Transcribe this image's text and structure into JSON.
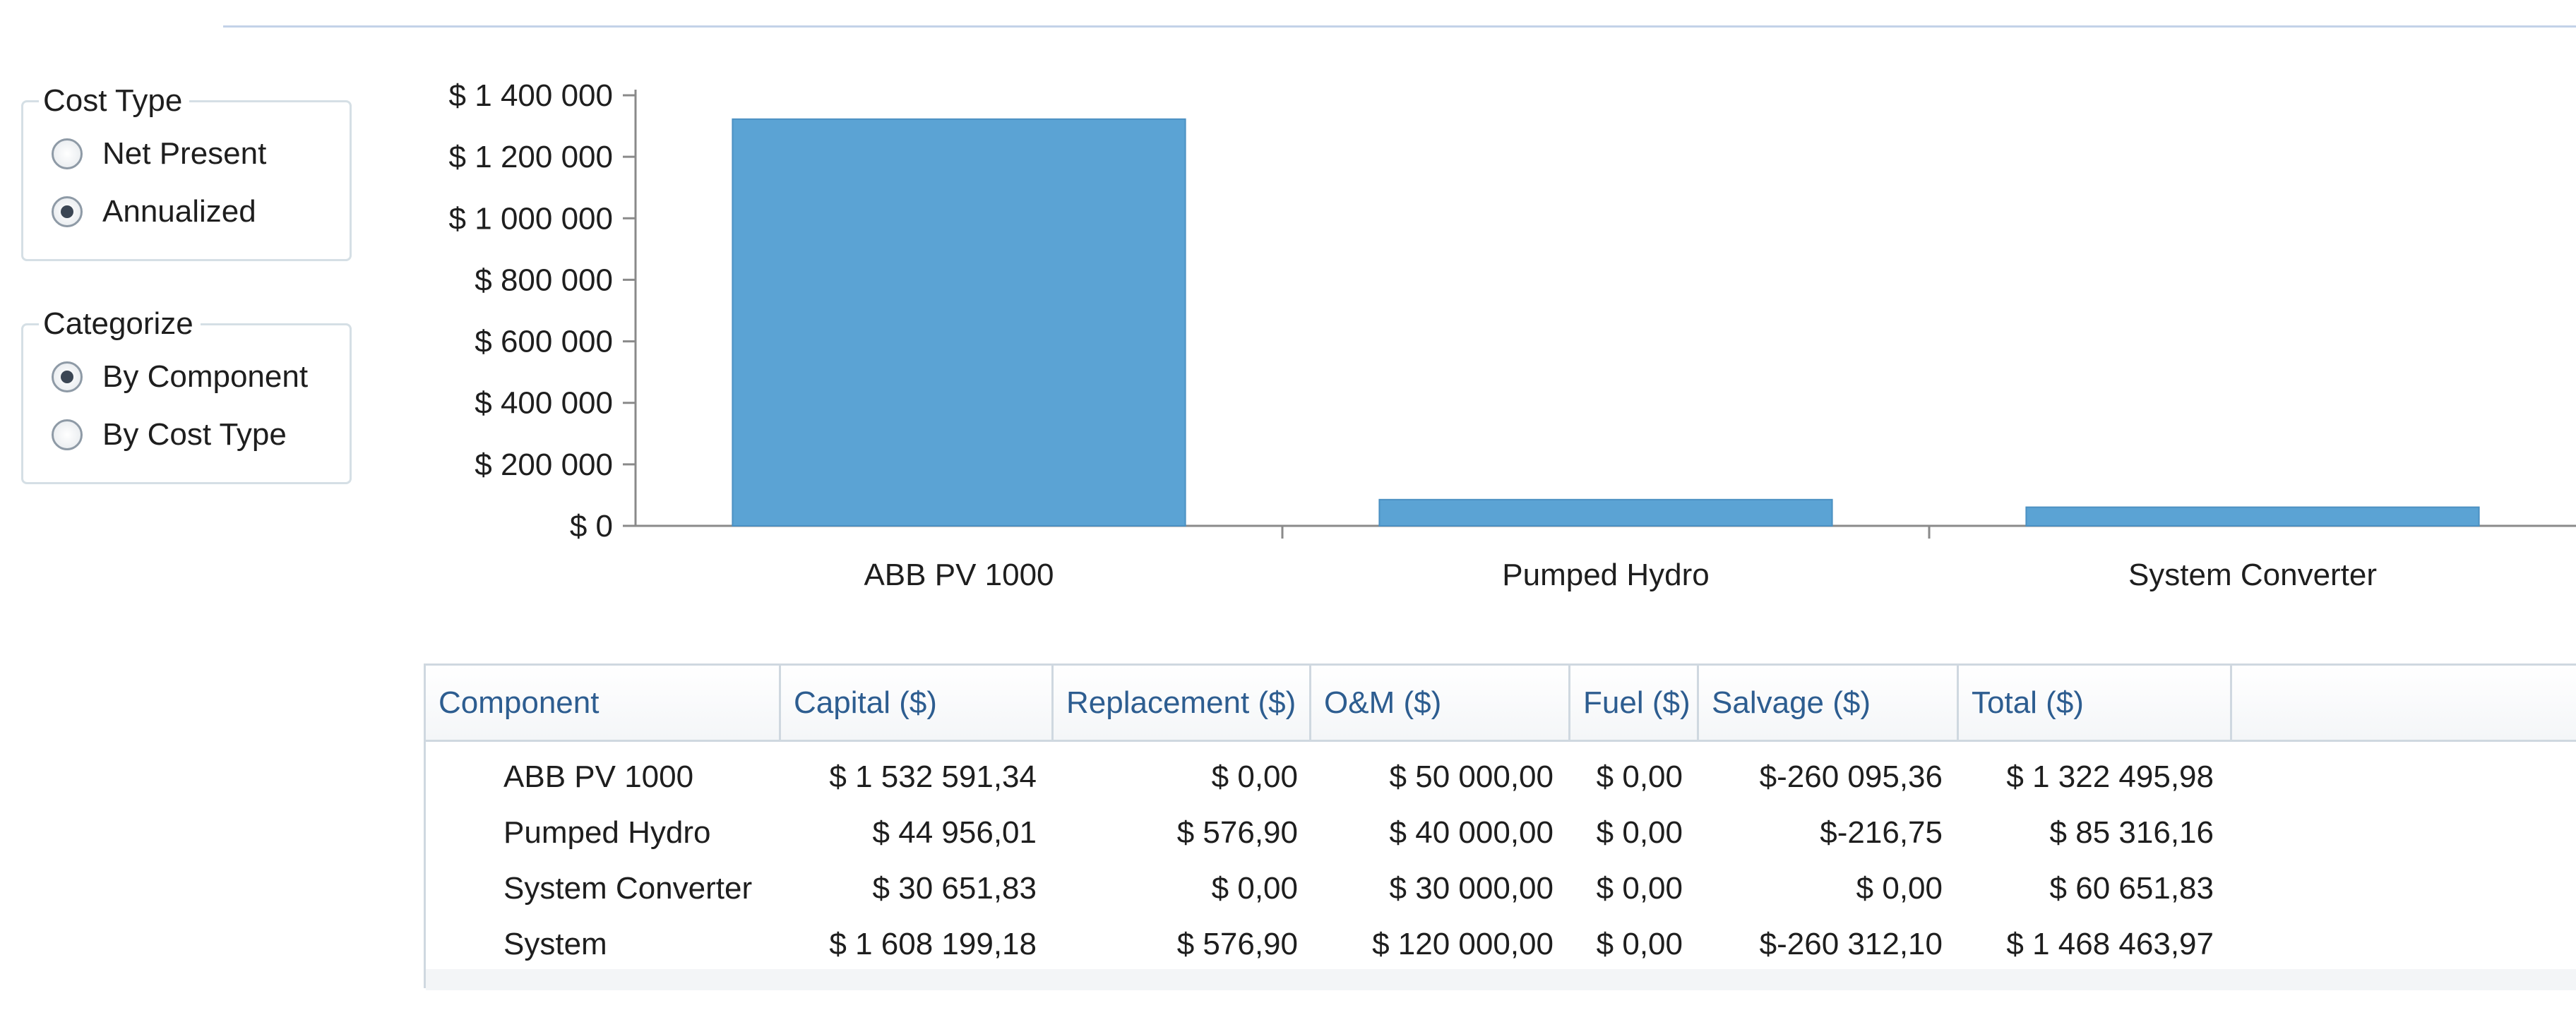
{
  "cost_type": {
    "title": "Cost Type",
    "options": [
      {
        "label": "Net Present",
        "selected": false
      },
      {
        "label": "Annualized",
        "selected": true
      }
    ]
  },
  "categorize": {
    "title": "Categorize",
    "options": [
      {
        "label": "By Component",
        "selected": true
      },
      {
        "label": "By Cost Type",
        "selected": false
      }
    ]
  },
  "colors": {
    "bar": "#5ba3d4",
    "axis": "#8a8a8a",
    "header_text": "#2d5d90",
    "grid_line": "#cfd8e0"
  },
  "chart_data": {
    "type": "bar",
    "categories": [
      "ABB PV 1000",
      "Pumped Hydro",
      "System Converter"
    ],
    "values": [
      1322495.98,
      85316.16,
      60651.83
    ],
    "ylim": [
      0,
      1400000
    ],
    "yticks": [
      0,
      200000,
      400000,
      600000,
      800000,
      1000000,
      1200000,
      1400000
    ],
    "ytick_labels": [
      "$ 0",
      "$ 200 000",
      "$ 400 000",
      "$ 600 000",
      "$ 800 000",
      "$ 1 000 000",
      "$ 1 200 000",
      "$ 1 400 000"
    ],
    "grid": false,
    "legend": "none"
  },
  "table": {
    "columns": [
      "Component",
      "Capital ($)",
      "Replacement ($)",
      "O&M ($)",
      "Fuel ($)",
      "Salvage ($)",
      "Total ($)"
    ],
    "rows": [
      [
        "ABB PV 1000",
        "$ 1 532 591,34",
        "$ 0,00",
        "$ 50 000,00",
        "$ 0,00",
        "$-260 095,36",
        "$ 1 322 495,98"
      ],
      [
        "Pumped Hydro",
        "$ 44 956,01",
        "$ 576,90",
        "$ 40 000,00",
        "$ 0,00",
        "$-216,75",
        "$ 85 316,16"
      ],
      [
        "System Converter",
        "$ 30 651,83",
        "$ 0,00",
        "$ 30 000,00",
        "$ 0,00",
        "$ 0,00",
        "$ 60 651,83"
      ],
      [
        "System",
        "$ 1 608 199,18",
        "$ 576,90",
        "$ 120 000,00",
        "$ 0,00",
        "$-260 312,10",
        "$ 1 468 463,97"
      ]
    ]
  }
}
